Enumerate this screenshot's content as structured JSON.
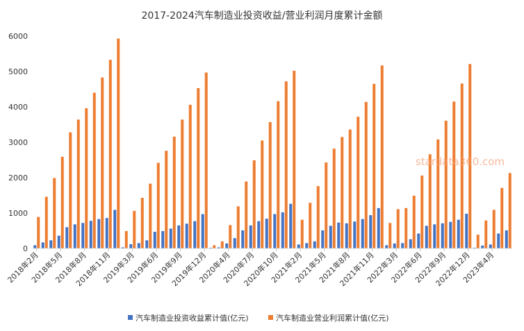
{
  "chart_data": {
    "type": "bar",
    "title": "2017-2024汽车制造业投资收益/营业利润月度累计金额",
    "xlabel": "",
    "ylabel": "",
    "ylim": [
      0,
      6000
    ],
    "yticks": [
      0,
      1000,
      2000,
      3000,
      4000,
      5000,
      6000
    ],
    "grid": false,
    "legend_position": "bottom",
    "watermark": "stardata360.com",
    "categories": [
      "2018年2月",
      "2018年3月",
      "2018年4月",
      "2018年5月",
      "2018年6月",
      "2018年7月",
      "2018年8月",
      "2018年9月",
      "2018年10月",
      "2018年11月",
      "2018年12月",
      "2019年2月",
      "2019年3月",
      "2019年4月",
      "2019年5月",
      "2019年6月",
      "2019年7月",
      "2019年8月",
      "2019年9月",
      "2019年10月",
      "2019年11月",
      "2019年12月",
      "2020年2月",
      "2020年3月",
      "2020年4月",
      "2020年5月",
      "2020年6月",
      "2020年7月",
      "2020年8月",
      "2020年9月",
      "2020年10月",
      "2020年11月",
      "2020年12月",
      "2021年2月",
      "2021年3月",
      "2021年4月",
      "2021年5月",
      "2021年6月",
      "2021年7月",
      "2021年8月",
      "2021年9月",
      "2021年10月",
      "2021年11月",
      "2021年12月",
      "2022年2月",
      "2022年3月",
      "2022年4月",
      "2022年5月",
      "2022年6月",
      "2022年7月",
      "2022年8月",
      "2022年9月",
      "2022年10月",
      "2022年11月",
      "2022年12月",
      "2023年2月",
      "2023年3月",
      "2023年4月",
      "2023年5月",
      "2023年6月"
    ],
    "tick_labels": [
      "2018年2月",
      "2018年5月",
      "2018年8月",
      "2018年11月",
      "2019年3月",
      "2019年6月",
      "2019年9月",
      "2019年12月",
      "2020年4月",
      "2020年7月",
      "2020年10月",
      "2021年2月",
      "2021年5月",
      "2021年8月",
      "2021年11月",
      "2022年3月",
      "2022年6月",
      "2022年9月",
      "2022年12月",
      "2023年4月"
    ],
    "series": [
      {
        "name": "汽车制造业投资收益累计值(亿元)",
        "color": "#4472c4",
        "values": [
          90,
          170,
          230,
          360,
          600,
          680,
          720,
          780,
          830,
          860,
          1090,
          30,
          120,
          150,
          230,
          470,
          490,
          560,
          650,
          700,
          770,
          970,
          20,
          30,
          140,
          290,
          510,
          650,
          770,
          840,
          970,
          1020,
          1260,
          110,
          150,
          200,
          510,
          640,
          730,
          710,
          760,
          830,
          940,
          1140,
          90,
          140,
          150,
          260,
          420,
          640,
          680,
          710,
          750,
          810,
          980,
          20,
          80,
          110,
          420,
          510
        ]
      },
      {
        "name": "汽车制造业营业利润累计值(亿元)",
        "color": "#ed7d31",
        "values": [
          890,
          1460,
          1990,
          2590,
          3280,
          3640,
          3960,
          4400,
          4830,
          5330,
          5930,
          490,
          1060,
          1430,
          1830,
          2420,
          2760,
          3160,
          3640,
          4060,
          4530,
          4970,
          90,
          200,
          660,
          1190,
          1890,
          2490,
          3050,
          3570,
          4160,
          4720,
          5020,
          810,
          1290,
          1760,
          2430,
          2820,
          3150,
          3360,
          3720,
          4140,
          4650,
          5170,
          720,
          1110,
          1140,
          1490,
          2060,
          2660,
          3080,
          3610,
          4150,
          4660,
          5210,
          390,
          790,
          1090,
          1710,
          2130
        ]
      }
    ]
  }
}
